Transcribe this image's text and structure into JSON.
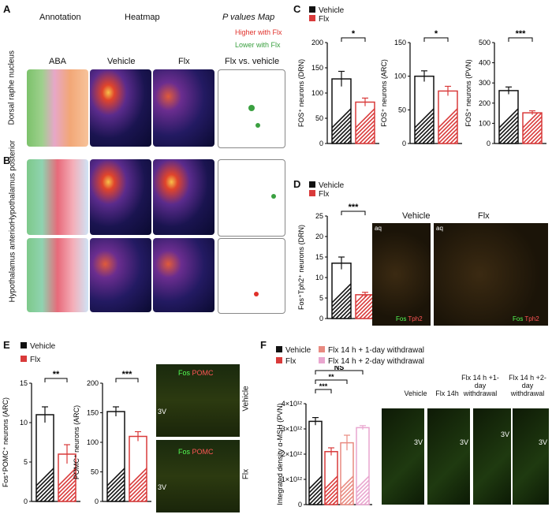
{
  "panelA": {
    "label": "A",
    "hdr_annotation": "Annotation",
    "hdr_heatmap": "Heatmap",
    "hdr_pvalues": "P values Map",
    "higher": "Higher with Flx",
    "lower": "Lower with Flx",
    "col_aba": "ABA",
    "col_vehicle": "Vehicle",
    "col_flx": "Flx",
    "col_vs": "Flx vs. vehicle",
    "row": "Dorsal raphe nucleus"
  },
  "panelB": {
    "label": "B",
    "row1": "Hypothalamus posterior",
    "row2": "Hypothalamus anterior"
  },
  "panelC": {
    "label": "C",
    "legend_vehicle": "Vehicle",
    "legend_flx": "Flx",
    "y1": "FOS⁺ neurons (DRN)",
    "y2": "FOS⁺ neurons (ARC)",
    "y3": "FOS⁺ neurons (PVN)",
    "sig1": "*",
    "sig2": "*",
    "sig3": "***"
  },
  "panelD": {
    "label": "D",
    "legend_vehicle": "Vehicle",
    "legend_flx": "Flx",
    "ylabel": "Fos⁺Tph2⁺ neurons (DRN)",
    "sig": "***",
    "img_vehicle": "Vehicle",
    "img_flx": "Flx",
    "aq": "aq",
    "fos": "Fos",
    "tph2": "Tph2"
  },
  "panelE": {
    "label": "E",
    "legend_vehicle": "Vehicle",
    "legend_flx": "Flx",
    "y1": "Fos⁺POMC⁺ neurons (ARC)",
    "y2": "POMC⁺ neurons (ARC)",
    "sig1": "**",
    "sig2": "***",
    "img_vehicle": "Vehicle",
    "img_flx": "Flx",
    "v3": "3V",
    "fos": "Fos",
    "pomc": "POMC"
  },
  "panelF": {
    "label": "F",
    "legend_vehicle": "Vehicle",
    "legend_flx": "Flx",
    "legend_w1": "Flx 14 h + 1-day withdrawal",
    "legend_w2": "Flx 14 h + 2-day withdrawal",
    "ns": "NS",
    "sig_a": "***",
    "sig_b": "**",
    "ylabel": "Integrated density α-MSH (PVN)",
    "img1": "Vehicle",
    "img2": "Flx 14h",
    "img3": "Flx 14 h +1-day withdrawal",
    "img4": "Flx 14 h +2-day withdrawal",
    "v3": "3V"
  },
  "colors": {
    "vehicle": "#111111",
    "flx": "#d93a3a",
    "w1": "#e88a80",
    "w2": "#e9a6cf"
  },
  "chart_data": [
    {
      "type": "bar",
      "ylabel": "FOS⁺ neurons (DRN)",
      "categories": [
        "Vehicle",
        "Flx"
      ],
      "values": [
        128,
        82
      ],
      "errors": [
        15,
        8
      ],
      "ylim": [
        0,
        200
      ],
      "yticks": [
        0,
        50,
        100,
        150,
        200
      ]
    },
    {
      "type": "bar",
      "ylabel": "FOS⁺ neurons (ARC)",
      "categories": [
        "Vehicle",
        "Flx"
      ],
      "values": [
        100,
        78
      ],
      "errors": [
        8,
        7
      ],
      "ylim": [
        0,
        150
      ],
      "yticks": [
        0,
        50,
        100,
        150
      ]
    },
    {
      "type": "bar",
      "ylabel": "FOS⁺ neurons (PVN)",
      "categories": [
        "Vehicle",
        "Flx"
      ],
      "values": [
        262,
        152
      ],
      "errors": [
        18,
        10
      ],
      "ylim": [
        0,
        500
      ],
      "yticks": [
        0,
        100,
        200,
        300,
        400,
        500
      ]
    },
    {
      "type": "bar",
      "ylabel": "Fos⁺Tph2⁺ neurons (DRN)",
      "categories": [
        "Vehicle",
        "Flx"
      ],
      "values": [
        13.5,
        5.8
      ],
      "errors": [
        1.5,
        0.6
      ],
      "ylim": [
        0,
        25
      ],
      "yticks": [
        0,
        5,
        10,
        15,
        20,
        25
      ]
    },
    {
      "type": "bar",
      "ylabel": "Fos⁺POMC⁺ neurons (ARC)",
      "categories": [
        "Vehicle",
        "Flx"
      ],
      "values": [
        11,
        6
      ],
      "errors": [
        1,
        1.2
      ],
      "ylim": [
        0,
        15
      ],
      "yticks": [
        0,
        5,
        10,
        15
      ]
    },
    {
      "type": "bar",
      "ylabel": "POMC⁺ neurons (ARC)",
      "categories": [
        "Vehicle",
        "Flx"
      ],
      "values": [
        152,
        110
      ],
      "errors": [
        8,
        8
      ],
      "ylim": [
        0,
        200
      ],
      "yticks": [
        0,
        50,
        100,
        150,
        200
      ]
    },
    {
      "type": "bar",
      "ylabel": "Integrated density α-MSH (PVN)",
      "categories": [
        "Vehicle",
        "Flx",
        "Flx 14 h + 1-day withdrawal",
        "Flx 14 h + 2-day withdrawal"
      ],
      "values": [
        3300000000000.0,
        2100000000000.0,
        2450000000000.0,
        3050000000000.0
      ],
      "errors": [
        150000000000.0,
        150000000000.0,
        300000000000.0,
        80000000000.0
      ],
      "ylim": [
        0,
        4000000000000.0
      ],
      "yticks": [
        "0",
        "1×10¹²",
        "2×10¹²",
        "3×10¹²",
        "4×10¹²"
      ]
    }
  ]
}
